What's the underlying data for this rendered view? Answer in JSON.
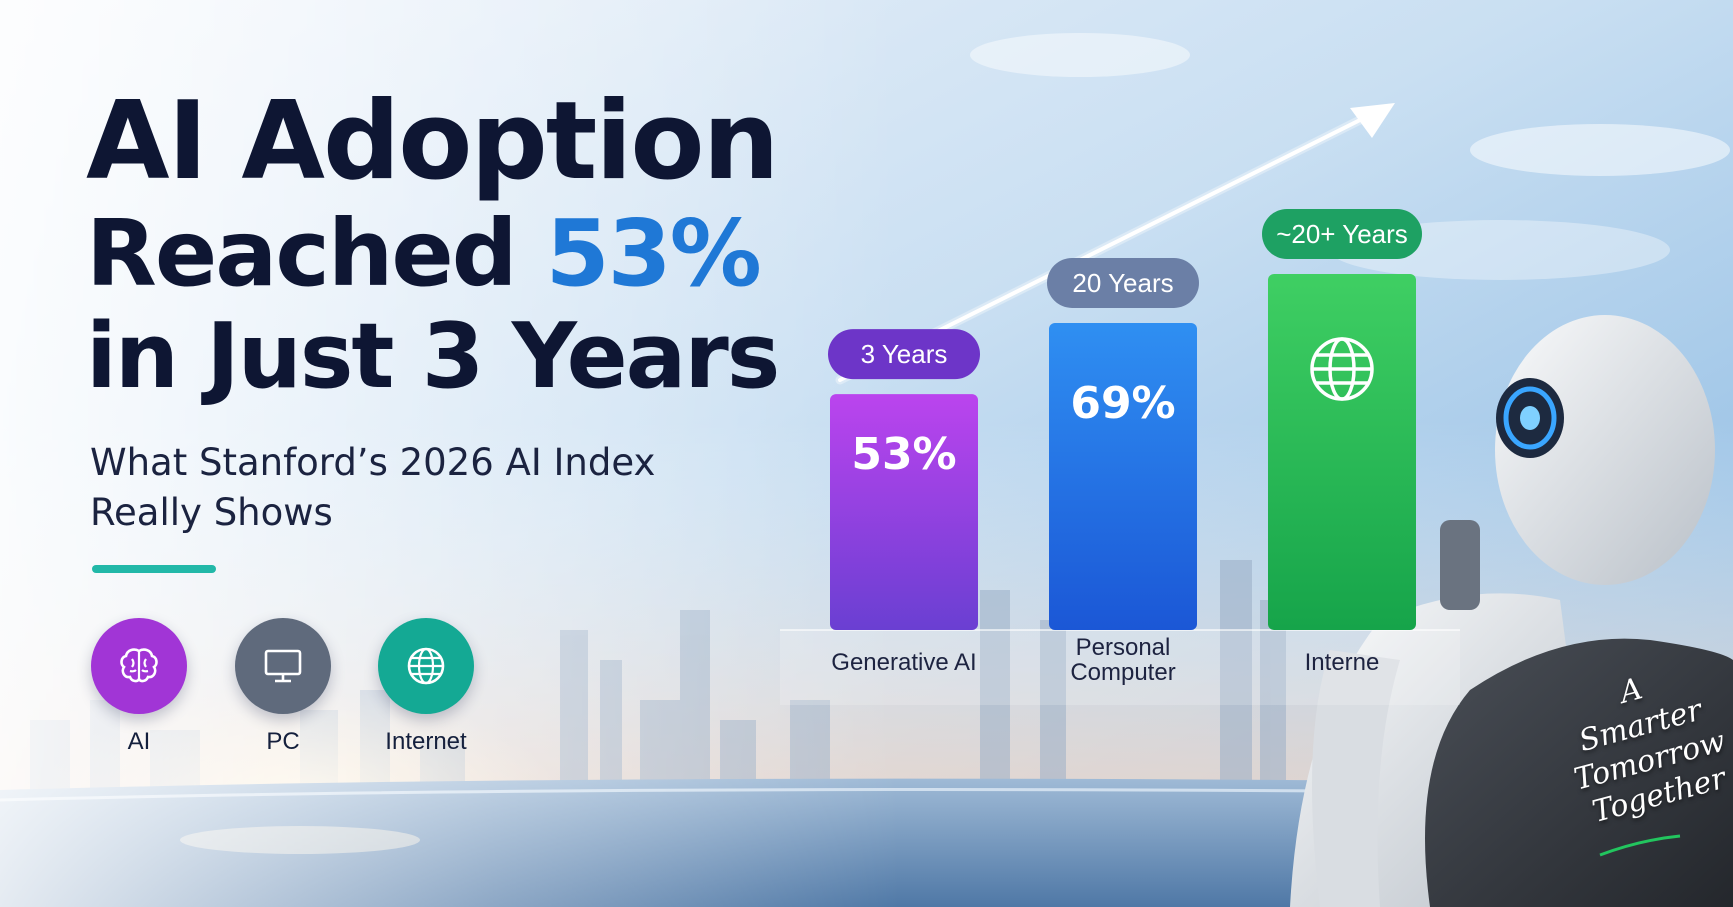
{
  "headline": {
    "line1": "AI Adoption",
    "line2_prefix": "Reached ",
    "line2_highlight": "53%",
    "line3": "in Just 3 Years"
  },
  "subtitle": "What Stanford’s 2026 AI Index Really Shows",
  "icons": [
    {
      "icon": "brain-icon",
      "label": "AI",
      "color": "#a135d6"
    },
    {
      "icon": "monitor-icon",
      "label": "PC",
      "color": "#5f6a7c"
    },
    {
      "icon": "globe-icon",
      "label": "Internet",
      "color": "#14a994"
    }
  ],
  "chart_data": {
    "type": "bar",
    "categories": [
      "Generative AI",
      "Personal Computer",
      "Internet"
    ],
    "series": [
      {
        "values": [
          53,
          69,
          80
        ]
      }
    ],
    "data_labels": [
      "53%",
      "69%",
      ""
    ],
    "time_badges": [
      "3 Years",
      "20 Years",
      "~20+ Years"
    ],
    "category_labels": [
      [
        "Generative AI"
      ],
      [
        "Personal",
        "Computer"
      ],
      [
        "Interne"
      ]
    ],
    "colors": [
      [
        "#bb44ee",
        "#6a3fd2"
      ],
      [
        "#2f8ff2",
        "#1b57d6"
      ],
      [
        "#3fcf63",
        "#16a44a"
      ]
    ],
    "badge_colors": [
      "#6d35c8",
      "#6b7fa6",
      "#1ea163"
    ],
    "internet_bar_icon": "globe-icon",
    "trend_arrow": true,
    "ylim": [
      0,
      100
    ]
  },
  "tagline": [
    "A",
    "Smarter",
    "Tomorrow",
    "Together"
  ]
}
